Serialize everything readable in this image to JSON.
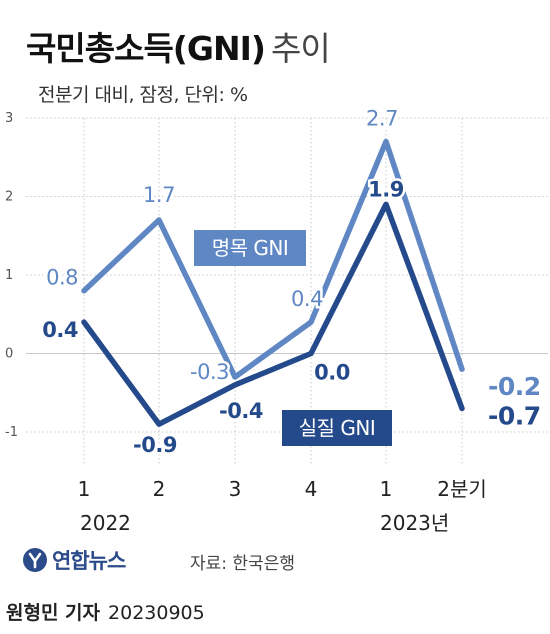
{
  "title": {
    "main": "국민총소득(GNI)",
    "sub": "추이"
  },
  "subtitle": "전분기 대비, 잠정, 단위: %",
  "chart_data": {
    "type": "line",
    "categories": [
      "1",
      "2",
      "3",
      "4",
      "1",
      "2분기"
    ],
    "year_labels": [
      "2022",
      "2023년"
    ],
    "ylim": [
      -1,
      3
    ],
    "yticks": [
      "3",
      "2",
      "1",
      "0",
      "-1"
    ],
    "grid": true,
    "series": [
      {
        "name": "명목 GNI",
        "values": [
          0.8,
          1.7,
          -0.3,
          0.4,
          2.7,
          -0.2
        ],
        "labels": [
          "0.8",
          "1.7",
          "-0.3",
          "0.4",
          "2.7",
          "-0.2"
        ],
        "color": "#5f87c4"
      },
      {
        "name": "실질 GNI",
        "values": [
          0.4,
          -0.9,
          -0.4,
          0.0,
          1.9,
          -0.7
        ],
        "labels": [
          "0.4",
          "-0.9",
          "-0.4",
          "0.0",
          "1.9",
          "-0.7"
        ],
        "color": "#244a8c"
      }
    ]
  },
  "footer": {
    "logo_icon": "yonhap-logo-icon",
    "logo_text": "연합뉴스",
    "source": "자료: 한국은행",
    "reporter": "원형민 기자",
    "date": "20230905"
  }
}
